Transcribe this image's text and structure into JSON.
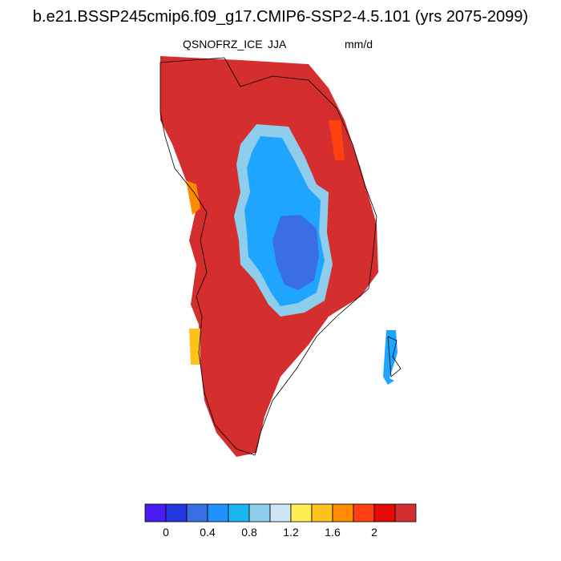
{
  "title": "b.e21.BSSP245cmip6.f09_g17.CMIP6-SSP2-4.5.101 (yrs 2075-2099)",
  "variable": "QSNOFRZ_ICE",
  "season": "JJA",
  "units": "mm/d",
  "colorbar": {
    "colors": [
      "#4b1cf2",
      "#2337e0",
      "#3a6fe4",
      "#1e90ff",
      "#18b7f2",
      "#8fcdec",
      "#cfe6f5",
      "#ffee55",
      "#ffc21a",
      "#ff8c00",
      "#ff4010",
      "#e60a0a",
      "#d42e2e"
    ],
    "labels": [
      "0",
      "0.4",
      "0.8",
      "1.2",
      "1.6",
      "2"
    ],
    "levels": [
      0,
      0.2,
      0.4,
      0.6,
      0.8,
      1.0,
      1.2,
      1.4,
      1.6,
      1.8,
      2.0,
      2.2
    ]
  },
  "map": {
    "region": "Greenland",
    "land_fill": "#d42e2e",
    "interior_low_fill": "#1ea5ff",
    "interior_lowest_fill": "#3a6fe4",
    "coastline_color": "#000000"
  }
}
